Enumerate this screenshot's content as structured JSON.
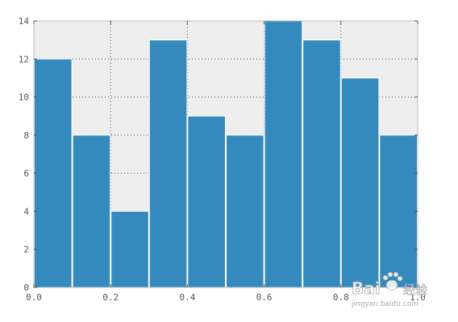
{
  "chart_data": {
    "type": "bar",
    "title": "",
    "xlabel": "",
    "ylabel": "",
    "bin_edges": [
      0.0,
      0.1,
      0.2,
      0.3,
      0.4,
      0.5,
      0.6,
      0.7,
      0.8,
      0.9,
      1.0
    ],
    "values": [
      12,
      8,
      4,
      13,
      9,
      8,
      14,
      13,
      11,
      8
    ],
    "xlim": [
      0.0,
      1.0
    ],
    "ylim": [
      0,
      14
    ],
    "xticks": [
      "0.0",
      "0.2",
      "0.4",
      "0.6",
      "0.8",
      "1.0"
    ],
    "yticks": [
      "0",
      "2",
      "4",
      "6",
      "8",
      "10",
      "12",
      "14"
    ],
    "grid": true,
    "bar_color": "#348abd",
    "background_color": "#eeeeee"
  },
  "watermark": {
    "brand": "Bai",
    "brand_suffix": "经验",
    "url": "jingyan.baidu.com"
  }
}
